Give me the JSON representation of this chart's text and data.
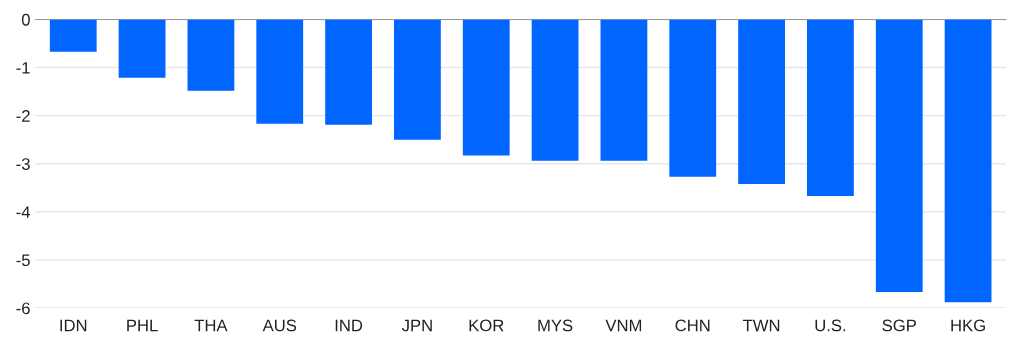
{
  "chart_data": {
    "type": "bar",
    "categories": [
      "IDN",
      "PHL",
      "THA",
      "AUS",
      "IND",
      "JPN",
      "KOR",
      "MYS",
      "VNM",
      "CHN",
      "TWN",
      "U.S.",
      "SGP",
      "HKG"
    ],
    "values": [
      -0.67,
      -1.21,
      -1.48,
      -2.17,
      -2.19,
      -2.5,
      -2.83,
      -2.94,
      -2.94,
      -3.27,
      -3.42,
      -3.67,
      -5.67,
      -5.88
    ],
    "color": "#0066ff",
    "ylim": [
      -6,
      0
    ],
    "yticks": [
      -6,
      -5,
      -4,
      -3,
      -2,
      -1,
      0
    ],
    "grid": "y"
  }
}
